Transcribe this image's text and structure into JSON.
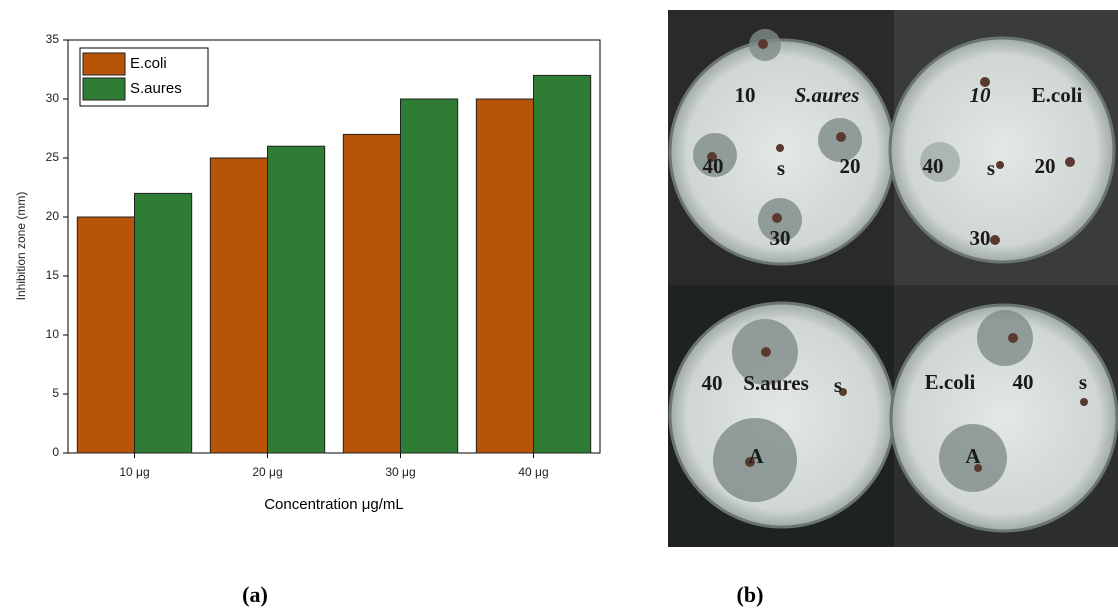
{
  "chart_data": {
    "type": "bar",
    "x_label": "Concentration μg/mL",
    "y_label": "Inhibition zone (mm)",
    "categories": [
      "10 μg",
      "20 μg",
      "30 μg",
      "40 μg"
    ],
    "series": [
      {
        "name": "E.coli",
        "color": "#b85408",
        "values": [
          20,
          25,
          27,
          30
        ]
      },
      {
        "name": "S.aures",
        "color": "#2f7d34",
        "values": [
          22,
          26,
          30,
          32
        ]
      }
    ],
    "ylim": [
      0,
      35
    ],
    "yticks": [
      0,
      5,
      10,
      15,
      20,
      25,
      30,
      35
    ],
    "legend": "top-left"
  },
  "panel_labels": [
    "(a)",
    "(b)"
  ],
  "photo": {
    "plates": [
      {
        "labels": [
          "10",
          "S.aures",
          "40",
          "s",
          "20",
          "30"
        ]
      },
      {
        "labels": [
          "10",
          "E.coli",
          "40",
          "s",
          "20",
          "30"
        ]
      },
      {
        "labels": [
          "40",
          "S.aures",
          "s",
          "A"
        ]
      },
      {
        "labels": [
          "E.coli",
          "40",
          "s",
          "A"
        ]
      }
    ]
  }
}
